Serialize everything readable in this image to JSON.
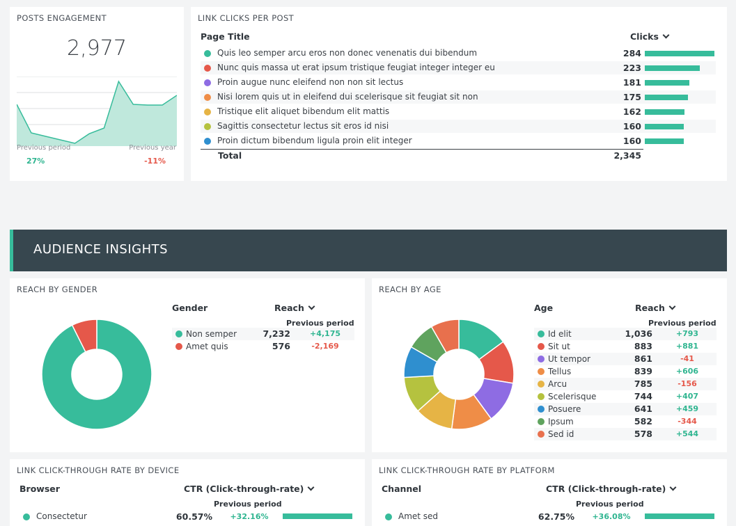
{
  "posts_engagement": {
    "title": "POSTS ENGAGEMENT",
    "value": "2,977",
    "prev_period_label": "Previous period",
    "prev_year_label": "Previous year",
    "prev_period_change": "27%",
    "prev_year_change": "-11%",
    "sparkline": [
      60,
      19,
      14,
      9,
      4,
      18,
      26,
      93,
      60,
      59,
      59,
      73
    ],
    "colors": {
      "fill": "#bfe8dc",
      "line": "#37bc9b",
      "pos": "#2fb590",
      "neg": "#e5584a"
    }
  },
  "link_clicks": {
    "title": "LINK CLICKS PER POST",
    "col_page_title": "Page Title",
    "col_clicks": "Clicks",
    "rows": [
      {
        "title": "Quis leo semper arcu eros non donec venenatis dui bibendum",
        "clicks": "284",
        "value": 284,
        "color": "#37bc9b"
      },
      {
        "title": "Nunc quis massa ut erat ipsum tristique feugiat integer integer eu",
        "clicks": "223",
        "value": 223,
        "color": "#e5584a"
      },
      {
        "title": "Proin augue nunc eleifend non non sit lectus",
        "clicks": "181",
        "value": 181,
        "color": "#8e6ce3"
      },
      {
        "title": "Nisi lorem quis ut in eleifend dui scelerisque sit feugiat sit non",
        "clicks": "175",
        "value": 175,
        "color": "#ef8d47"
      },
      {
        "title": "Tristique elit aliquet bibendum elit mattis",
        "clicks": "162",
        "value": 162,
        "color": "#e6b445"
      },
      {
        "title": "Sagittis consectetur lectus sit eros id nisi",
        "clicks": "160",
        "value": 160,
        "color": "#b5c23f"
      },
      {
        "title": "Proin dictum bibendum ligula proin elit integer",
        "clicks": "160",
        "value": 160,
        "color": "#2f8fcf"
      }
    ],
    "total_label": "Total",
    "total_value": "2,345"
  },
  "banner": {
    "title": "AUDIENCE INSIGHTS"
  },
  "reach_gender": {
    "title": "REACH BY GENDER",
    "col_gender": "Gender",
    "col_reach": "Reach",
    "col_prev": "Previous period",
    "rows": [
      {
        "label": "Non semper",
        "reach": "7,232",
        "value": 7232,
        "change": "+4,175",
        "dir": "pos",
        "color": "#37bc9b"
      },
      {
        "label": "Amet quis",
        "reach": "576",
        "value": 576,
        "change": "-2,169",
        "dir": "neg",
        "color": "#e5584a"
      }
    ]
  },
  "reach_age": {
    "title": "REACH BY AGE",
    "col_age": "Age",
    "col_reach": "Reach",
    "col_prev": "Previous period",
    "rows": [
      {
        "label": "Id elit",
        "reach": "1,036",
        "value": 1036,
        "change": "+793",
        "dir": "pos",
        "color": "#37bc9b"
      },
      {
        "label": "Sit ut",
        "reach": "883",
        "value": 883,
        "change": "+881",
        "dir": "pos",
        "color": "#e5584a"
      },
      {
        "label": "Ut tempor",
        "reach": "861",
        "value": 861,
        "change": "-41",
        "dir": "neg",
        "color": "#8e6ce3"
      },
      {
        "label": "Tellus",
        "reach": "839",
        "value": 839,
        "change": "+606",
        "dir": "pos",
        "color": "#ef8d47"
      },
      {
        "label": "Arcu",
        "reach": "785",
        "value": 785,
        "change": "-156",
        "dir": "neg",
        "color": "#e6b445"
      },
      {
        "label": "Scelerisque",
        "reach": "744",
        "value": 744,
        "change": "+407",
        "dir": "pos",
        "color": "#b5c23f"
      },
      {
        "label": "Posuere",
        "reach": "641",
        "value": 641,
        "change": "+459",
        "dir": "pos",
        "color": "#2f8fcf"
      },
      {
        "label": "Ipsum",
        "reach": "582",
        "value": 582,
        "change": "-344",
        "dir": "neg",
        "color": "#5fa35e"
      },
      {
        "label": "Sed id",
        "reach": "578",
        "value": 578,
        "change": "+544",
        "dir": "pos",
        "color": "#e8704d"
      }
    ]
  },
  "ctr_device": {
    "title": "LINK CLICK-THROUGH RATE BY DEVICE",
    "col_browser": "Browser",
    "col_ctr": "CTR (Click-through-rate)",
    "col_prev": "Previous period",
    "rows": [
      {
        "label": "Consectetur",
        "ctr": "60.57%",
        "change": "+32.16%",
        "color": "#37bc9b",
        "bar_fraction": 1.0
      }
    ]
  },
  "ctr_platform": {
    "title": "LINK CLICK-THROUGH RATE BY PLATFORM",
    "col_channel": "Channel",
    "col_ctr": "CTR (Click-through-rate)",
    "col_prev": "Previous period",
    "rows": [
      {
        "label": "Amet sed",
        "ctr": "62.75%",
        "change": "+36.08%",
        "color": "#37bc9b",
        "bar_fraction": 1.0
      }
    ]
  }
}
